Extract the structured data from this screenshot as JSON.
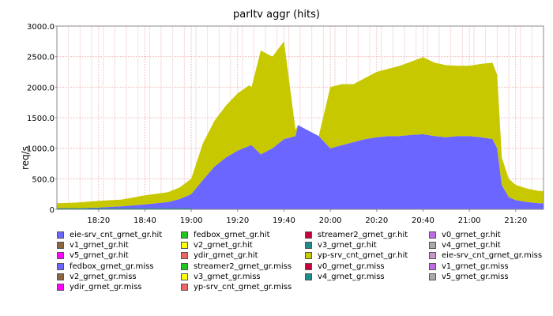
{
  "chart_data": {
    "type": "area",
    "title": "parltv aggr (hits)",
    "ylabel": "req/s",
    "xlabel": "",
    "ylim": [
      0,
      3000
    ],
    "xlim": [
      "18:02",
      "21:32"
    ],
    "y_ticks": [
      "0",
      "500.0",
      "1000.0",
      "1500.0",
      "2000.0",
      "2500.0",
      "3000.0"
    ],
    "x_ticks": [
      "18:20",
      "18:40",
      "19:00",
      "19:20",
      "19:40",
      "20:00",
      "20:20",
      "20:40",
      "21:00",
      "21:20"
    ],
    "grid": true,
    "stacked": true,
    "series": [
      {
        "name": "fedbox_grnet_gr.miss",
        "color": "#6b66ff",
        "x": [
          "18:02",
          "18:10",
          "18:20",
          "18:30",
          "18:40",
          "18:50",
          "18:55",
          "19:00",
          "19:05",
          "19:10",
          "19:15",
          "19:20",
          "19:25",
          "19:26",
          "19:30",
          "19:35",
          "19:40",
          "19:45",
          "19:46",
          "19:50",
          "19:55",
          "20:00",
          "20:05",
          "20:10",
          "20:15",
          "20:20",
          "20:25",
          "20:30",
          "20:35",
          "20:40",
          "20:45",
          "20:50",
          "20:55",
          "21:00",
          "21:05",
          "21:10",
          "21:12",
          "21:14",
          "21:17",
          "21:20",
          "21:25",
          "21:30",
          "21:32"
        ],
        "values": [
          10,
          20,
          30,
          50,
          80,
          120,
          170,
          250,
          480,
          700,
          850,
          960,
          1040,
          1050,
          900,
          1000,
          1150,
          1200,
          1380,
          1300,
          1200,
          1000,
          1050,
          1100,
          1150,
          1180,
          1200,
          1200,
          1220,
          1230,
          1200,
          1180,
          1200,
          1200,
          1180,
          1150,
          1000,
          400,
          200,
          150,
          120,
          100,
          100
        ]
      },
      {
        "name": "yp-srv_cnt_grnet_gr.hit",
        "color": "#c8c800",
        "x": [
          "18:02",
          "18:10",
          "18:20",
          "18:30",
          "18:40",
          "18:50",
          "18:55",
          "19:00",
          "19:05",
          "19:10",
          "19:15",
          "19:20",
          "19:25",
          "19:26",
          "19:30",
          "19:35",
          "19:40",
          "19:45",
          "19:46",
          "19:50",
          "19:55",
          "20:00",
          "20:05",
          "20:10",
          "20:15",
          "20:20",
          "20:25",
          "20:30",
          "20:35",
          "20:40",
          "20:45",
          "20:50",
          "20:55",
          "21:00",
          "21:05",
          "21:10",
          "21:12",
          "21:14",
          "21:17",
          "21:20",
          "21:25",
          "21:30",
          "21:32"
        ],
        "values": [
          90,
          90,
          110,
          110,
          150,
          160,
          190,
          250,
          600,
          750,
          850,
          940,
          990,
          950,
          1700,
          1500,
          1600,
          100,
          0,
          0,
          0,
          1000,
          1000,
          950,
          1000,
          1070,
          1100,
          1150,
          1200,
          1260,
          1200,
          1180,
          1150,
          1150,
          1200,
          1250,
          1200,
          450,
          300,
          250,
          220,
          200,
          200
        ]
      },
      {
        "name": "eie-srv_cnt_grnet_gr.hit",
        "color": "#6b66ff",
        "x": [
          "18:02",
          "18:20",
          "18:40",
          "19:00",
          "19:20",
          "19:40",
          "20:00",
          "20:20",
          "20:40",
          "21:00",
          "21:20",
          "21:32"
        ],
        "values": [
          0,
          0,
          0,
          0,
          0,
          0,
          0,
          0,
          0,
          0,
          0,
          0
        ]
      }
    ],
    "legend_position": "bottom",
    "legend": [
      {
        "label": "eie-srv_cnt_grnet_gr.hit",
        "color": "#6b66ff"
      },
      {
        "label": "fedbox_grnet_gr.hit",
        "color": "#1ec81e"
      },
      {
        "label": "streamer2_grnet_gr.hit",
        "color": "#c8003c"
      },
      {
        "label": "v0_grnet_gr.hit",
        "color": "#c06ae6"
      },
      {
        "label": "v1_grnet_gr.hit",
        "color": "#8c6440"
      },
      {
        "label": "v2_grnet_gr.hit",
        "color": "#ffff00"
      },
      {
        "label": "v3_grnet_gr.hit",
        "color": "#1e8c8c"
      },
      {
        "label": "v4_grnet_gr.hit",
        "color": "#aaaaaa"
      },
      {
        "label": "v5_grnet_gr.hit",
        "color": "#ff00ff"
      },
      {
        "label": "ydir_grnet_gr.hit",
        "color": "#f06464"
      },
      {
        "label": "yp-srv_cnt_grnet_gr.hit",
        "color": "#c8c800"
      },
      {
        "label": "eie-srv_cnt_grnet_gr.miss",
        "color": "#c896c8"
      },
      {
        "label": "fedbox_grnet_gr.miss",
        "color": "#6b66ff"
      },
      {
        "label": "streamer2_grnet_gr.miss",
        "color": "#1ec81e"
      },
      {
        "label": "v0_grnet_gr.miss",
        "color": "#c8003c"
      },
      {
        "label": "v1_grnet_gr.miss",
        "color": "#c06ae6"
      },
      {
        "label": "v2_grnet_gr.miss",
        "color": "#8c6440"
      },
      {
        "label": "v3_grnet_gr.miss",
        "color": "#ffff00"
      },
      {
        "label": "v4_grnet_gr.miss",
        "color": "#1e8c8c"
      },
      {
        "label": "v5_grnet_gr.miss",
        "color": "#aaaaaa"
      },
      {
        "label": "ydir_grnet_gr.miss",
        "color": "#ff00ff"
      },
      {
        "label": "yp-srv_cnt_grnet_gr.miss",
        "color": "#f06464"
      }
    ]
  }
}
